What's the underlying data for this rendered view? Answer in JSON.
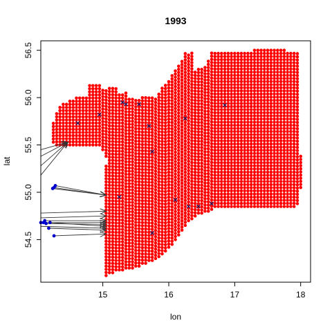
{
  "chart_data": {
    "type": "scatter",
    "title": "1993",
    "xlabel": "lon",
    "ylabel": "lat",
    "xlim": [
      14.06,
      18.15
    ],
    "ylim": [
      54.05,
      56.6
    ],
    "x_ticks": [
      15,
      16,
      17,
      18
    ],
    "y_ticks": [
      54.5,
      55.0,
      55.5,
      56.0,
      56.5
    ],
    "grid": false,
    "legend": "none",
    "colors": {
      "grid_points": "#ff0000",
      "observed_points": "#0000cc",
      "arrows": "#333333",
      "cross_marks": "#1a1a66"
    },
    "grid_spacing": {
      "lon": 0.05,
      "lat": 0.033
    },
    "grid_columns": [
      [
        14.25,
        55.53,
        55.73
      ],
      [
        14.3,
        55.5,
        55.85
      ],
      [
        14.35,
        55.5,
        55.9
      ],
      [
        14.4,
        55.5,
        55.93
      ],
      [
        14.45,
        55.5,
        55.95
      ],
      [
        14.5,
        55.5,
        55.97
      ],
      [
        14.55,
        55.5,
        55.97
      ],
      [
        14.6,
        55.5,
        56.0
      ],
      [
        14.65,
        55.5,
        56.0
      ],
      [
        14.7,
        55.5,
        56.0
      ],
      [
        14.75,
        55.5,
        56.0
      ],
      [
        14.8,
        55.5,
        56.13
      ],
      [
        14.85,
        55.5,
        56.13
      ],
      [
        14.9,
        55.5,
        56.13
      ],
      [
        14.95,
        55.5,
        56.13
      ],
      [
        15.0,
        55.45,
        56.1
      ],
      [
        15.05,
        54.12,
        55.3
      ],
      [
        15.05,
        55.38,
        56.1
      ],
      [
        15.1,
        54.15,
        56.1
      ],
      [
        15.15,
        54.15,
        56.1
      ],
      [
        15.2,
        54.18,
        56.1
      ],
      [
        15.25,
        54.18,
        56.05
      ],
      [
        15.3,
        54.18,
        56.05
      ],
      [
        15.35,
        54.2,
        56.05
      ],
      [
        15.4,
        54.2,
        56.0
      ],
      [
        15.45,
        54.2,
        56.0
      ],
      [
        15.5,
        54.22,
        56.0
      ],
      [
        15.55,
        54.22,
        56.0
      ],
      [
        15.6,
        54.25,
        56.0
      ],
      [
        15.65,
        54.25,
        56.0
      ],
      [
        15.7,
        54.28,
        56.0
      ],
      [
        15.75,
        54.28,
        56.0
      ],
      [
        15.8,
        54.3,
        56.0
      ],
      [
        15.85,
        54.32,
        56.05
      ],
      [
        15.9,
        54.35,
        56.1
      ],
      [
        15.95,
        54.38,
        56.15
      ],
      [
        16.0,
        54.42,
        56.2
      ],
      [
        16.05,
        54.45,
        56.25
      ],
      [
        16.1,
        54.5,
        56.3
      ],
      [
        16.15,
        54.55,
        56.35
      ],
      [
        16.2,
        54.6,
        56.4
      ],
      [
        16.25,
        54.65,
        56.48
      ],
      [
        16.3,
        54.7,
        56.48
      ],
      [
        16.35,
        54.72,
        56.48
      ],
      [
        16.4,
        54.75,
        56.3
      ],
      [
        16.45,
        54.78,
        56.3
      ],
      [
        16.5,
        54.78,
        56.3
      ],
      [
        16.55,
        54.8,
        56.35
      ],
      [
        16.6,
        54.8,
        56.4
      ],
      [
        16.65,
        54.82,
        56.48
      ],
      [
        16.7,
        54.85,
        56.48
      ],
      [
        16.75,
        54.85,
        56.48
      ],
      [
        16.8,
        54.85,
        56.48
      ],
      [
        16.85,
        54.85,
        56.48
      ],
      [
        16.9,
        54.85,
        56.48
      ],
      [
        16.95,
        54.85,
        56.48
      ],
      [
        17.0,
        54.85,
        56.48
      ],
      [
        17.05,
        54.85,
        56.48
      ],
      [
        17.1,
        54.85,
        56.48
      ],
      [
        17.15,
        54.85,
        56.48
      ],
      [
        17.2,
        54.85,
        56.48
      ],
      [
        17.25,
        54.85,
        56.48
      ],
      [
        17.3,
        54.85,
        56.5
      ],
      [
        17.35,
        54.85,
        56.5
      ],
      [
        17.4,
        54.85,
        56.5
      ],
      [
        17.45,
        54.85,
        56.5
      ],
      [
        17.5,
        54.85,
        56.5
      ],
      [
        17.55,
        54.85,
        56.5
      ],
      [
        17.6,
        54.85,
        56.5
      ],
      [
        17.65,
        54.85,
        56.5
      ],
      [
        17.7,
        54.85,
        56.5
      ],
      [
        17.75,
        54.85,
        56.5
      ],
      [
        17.8,
        54.85,
        56.48
      ],
      [
        17.85,
        54.85,
        56.48
      ],
      [
        17.9,
        54.85,
        56.48
      ],
      [
        17.95,
        54.88,
        56.48
      ],
      [
        18.0,
        55.05,
        55.38
      ]
    ],
    "observed_points": [
      {
        "x": 14.28,
        "y": 55.07
      },
      {
        "x": 14.26,
        "y": 55.05
      },
      {
        "x": 14.24,
        "y": 55.04
      },
      {
        "x": 14.12,
        "y": 54.7
      },
      {
        "x": 14.1,
        "y": 54.68
      },
      {
        "x": 14.14,
        "y": 54.67
      },
      {
        "x": 14.06,
        "y": 54.68
      },
      {
        "x": 14.2,
        "y": 54.68
      },
      {
        "x": 14.18,
        "y": 54.62
      },
      {
        "x": 14.26,
        "y": 54.54
      }
    ],
    "arrows": [
      {
        "from": [
          14.06,
          55.18
        ],
        "to": [
          14.47,
          55.53
        ]
      },
      {
        "from": [
          14.06,
          55.28
        ],
        "to": [
          14.47,
          55.53
        ]
      },
      {
        "from": [
          14.06,
          55.38
        ],
        "to": [
          14.47,
          55.53
        ]
      },
      {
        "from": [
          14.06,
          55.45
        ],
        "to": [
          14.47,
          55.53
        ]
      },
      {
        "from": [
          14.28,
          55.07
        ],
        "to": [
          15.05,
          54.97
        ]
      },
      {
        "from": [
          14.26,
          55.05
        ],
        "to": [
          15.05,
          54.97
        ]
      },
      {
        "from": [
          14.24,
          55.04
        ],
        "to": [
          15.05,
          54.97
        ]
      },
      {
        "from": [
          14.06,
          54.78
        ],
        "to": [
          15.05,
          54.8
        ]
      },
      {
        "from": [
          14.06,
          54.73
        ],
        "to": [
          15.05,
          54.75
        ]
      },
      {
        "from": [
          14.12,
          54.7
        ],
        "to": [
          15.05,
          54.7
        ]
      },
      {
        "from": [
          14.1,
          54.68
        ],
        "to": [
          15.05,
          54.68
        ]
      },
      {
        "from": [
          14.14,
          54.67
        ],
        "to": [
          15.05,
          54.66
        ]
      },
      {
        "from": [
          14.2,
          54.68
        ],
        "to": [
          15.05,
          54.64
        ]
      },
      {
        "from": [
          14.18,
          54.62
        ],
        "to": [
          15.05,
          54.6
        ]
      },
      {
        "from": [
          14.06,
          54.64
        ],
        "to": [
          15.05,
          54.62
        ]
      },
      {
        "from": [
          14.26,
          54.54
        ],
        "to": [
          15.05,
          54.56
        ]
      }
    ],
    "cross_marks": [
      {
        "x": 14.62,
        "y": 55.73
      },
      {
        "x": 14.95,
        "y": 55.82
      },
      {
        "x": 15.3,
        "y": 55.95
      },
      {
        "x": 15.35,
        "y": 55.93
      },
      {
        "x": 15.55,
        "y": 55.93
      },
      {
        "x": 15.7,
        "y": 55.7
      },
      {
        "x": 15.75,
        "y": 55.43
      },
      {
        "x": 16.25,
        "y": 55.78
      },
      {
        "x": 16.85,
        "y": 55.92
      },
      {
        "x": 15.25,
        "y": 54.95
      },
      {
        "x": 16.1,
        "y": 54.92
      },
      {
        "x": 16.3,
        "y": 54.85
      },
      {
        "x": 16.45,
        "y": 54.85
      },
      {
        "x": 16.65,
        "y": 54.88
      },
      {
        "x": 15.75,
        "y": 54.57
      }
    ]
  }
}
